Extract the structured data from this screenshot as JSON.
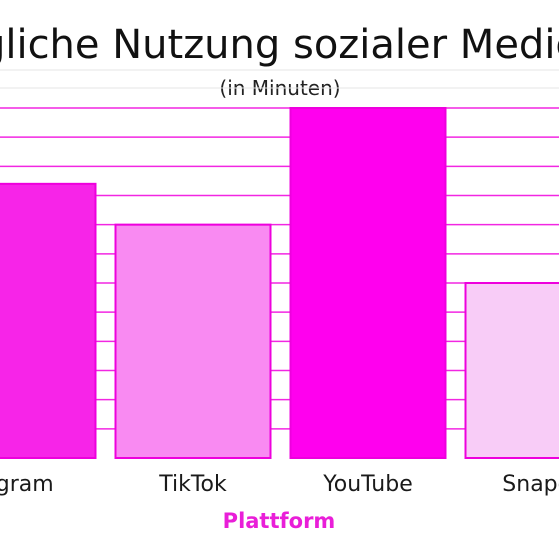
{
  "chart_data": {
    "type": "bar",
    "title": "gliche Nutzung sozialer Medie",
    "subtitle": "(in Minuten)",
    "xlabel": "Plattform",
    "ylabel": "",
    "categories": [
      "agram",
      "TikTok",
      "YouTube",
      "Snapch"
    ],
    "values": [
      47,
      40,
      60,
      30
    ],
    "ylim": [
      0,
      60
    ],
    "grid": true,
    "legend": "none"
  },
  "colors": {
    "bars": [
      "#f724e8",
      "#f98af2",
      "#ff00ee",
      "#f8ccf7"
    ],
    "bar_stroke": "#ee00dd",
    "grid": "#f226e2",
    "grid_light": "#e6e6e6",
    "axis_title": "#e91ed8"
  }
}
